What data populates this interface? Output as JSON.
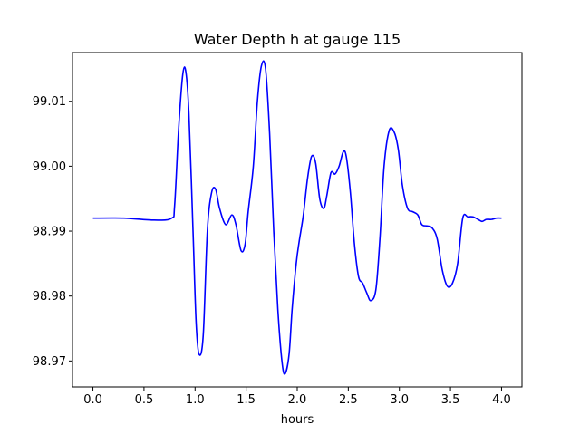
{
  "chart_data": {
    "type": "line",
    "title": "Water Depth h at gauge 115",
    "xlabel": "hours",
    "ylabel": "",
    "xlim": [
      -0.2,
      4.2
    ],
    "ylim": [
      98.966,
      99.0175
    ],
    "xticks": [
      0.0,
      0.5,
      1.0,
      1.5,
      2.0,
      2.5,
      3.0,
      3.5,
      4.0
    ],
    "xtick_labels": [
      "0.0",
      "0.5",
      "1.0",
      "1.5",
      "2.0",
      "2.5",
      "3.0",
      "3.5",
      "4.0"
    ],
    "yticks": [
      98.97,
      98.98,
      98.99,
      99.0,
      99.01
    ],
    "ytick_labels": [
      "98.97",
      "98.98",
      "98.99",
      "99.00",
      "99.01"
    ],
    "grid": false,
    "legend": "none",
    "series": [
      {
        "color": "#0000ff",
        "x": [
          0.0,
          0.3,
          0.6,
          0.77,
          0.8,
          0.84,
          0.88,
          0.91,
          0.94,
          0.98,
          1.01,
          1.04,
          1.08,
          1.12,
          1.16,
          1.2,
          1.24,
          1.3,
          1.36,
          1.4,
          1.45,
          1.49,
          1.52,
          1.57,
          1.61,
          1.65,
          1.69,
          1.73,
          1.77,
          1.81,
          1.85,
          1.88,
          1.92,
          1.95,
          1.99,
          2.02,
          2.06,
          2.1,
          2.14,
          2.18,
          2.22,
          2.26,
          2.29,
          2.33,
          2.37,
          2.41,
          2.45,
          2.48,
          2.52,
          2.56,
          2.6,
          2.64,
          2.68,
          2.72,
          2.77,
          2.81,
          2.85,
          2.9,
          2.95,
          2.99,
          3.03,
          3.08,
          3.13,
          3.18,
          3.22,
          3.27,
          3.32,
          3.37,
          3.42,
          3.47,
          3.52,
          3.57,
          3.62,
          3.67,
          3.72,
          3.77,
          3.81,
          3.85,
          3.9,
          3.95,
          4.0
        ],
        "y": [
          98.992,
          98.992,
          98.9917,
          98.992,
          98.994,
          99.006,
          99.0142,
          99.0145,
          99.008,
          98.99,
          98.976,
          98.971,
          98.974,
          98.99,
          98.9958,
          98.9965,
          98.9935,
          98.991,
          98.9925,
          98.991,
          98.987,
          98.988,
          98.993,
          99.0,
          99.01,
          99.0155,
          99.015,
          99.005,
          98.99,
          98.978,
          98.97,
          98.968,
          98.971,
          98.978,
          98.985,
          98.9885,
          98.9925,
          98.998,
          99.0015,
          99.0005,
          98.995,
          98.9935,
          98.9955,
          98.999,
          98.9988,
          99.0,
          99.0022,
          99.0015,
          98.996,
          98.988,
          98.983,
          98.982,
          98.9805,
          98.9793,
          98.981,
          98.989,
          99.0,
          99.0055,
          99.0052,
          99.0025,
          98.997,
          98.9935,
          98.993,
          98.9925,
          98.991,
          98.9908,
          98.9905,
          98.9888,
          98.984,
          98.9815,
          98.982,
          98.985,
          98.992,
          98.9922,
          98.9922,
          98.9918,
          98.9915,
          98.9918,
          98.9918,
          98.992,
          98.992
        ]
      }
    ]
  }
}
